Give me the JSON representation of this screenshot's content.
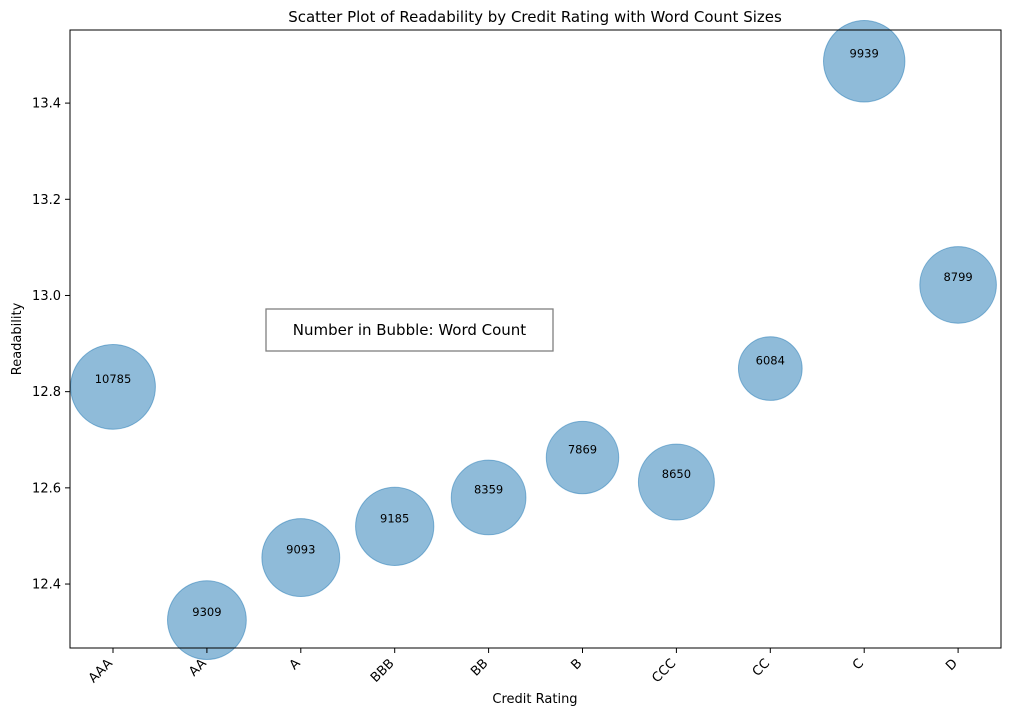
{
  "chart_data": {
    "type": "scatter",
    "title": "Scatter Plot of Readability by Credit Rating with Word Count Sizes",
    "xlabel": "Credit Rating",
    "ylabel": "Readability",
    "categories": [
      "AAA",
      "AA",
      "A",
      "BBB",
      "BB",
      "B",
      "CCC",
      "CC",
      "C",
      "D"
    ],
    "values": [
      12.81,
      12.325,
      12.455,
      12.52,
      12.58,
      12.663,
      12.612,
      12.848,
      13.487,
      13.022
    ],
    "word_counts": [
      10785,
      9309,
      9093,
      9185,
      8359,
      7869,
      8650,
      6084,
      9939,
      8799
    ],
    "ylim": [
      12.267,
      13.552
    ],
    "yticks": [
      "12.4",
      "12.6",
      "12.8",
      "13.0",
      "13.2",
      "13.4"
    ],
    "annotation": "Number in Bubble: Word Count",
    "grid": false,
    "bubble_color": "#1f77b4"
  }
}
